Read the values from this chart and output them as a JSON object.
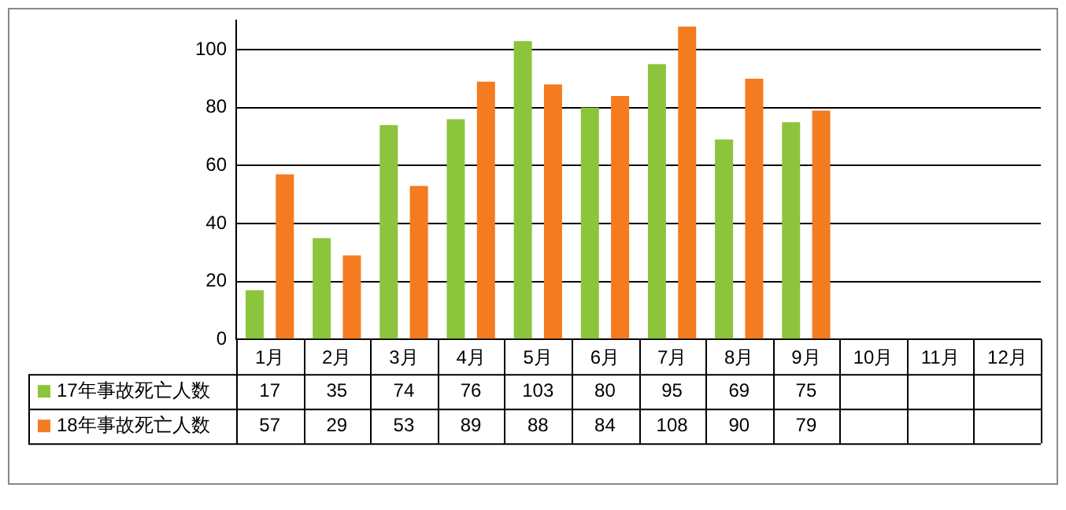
{
  "chart_data": {
    "type": "bar",
    "categories": [
      "1月",
      "2月",
      "3月",
      "4月",
      "5月",
      "6月",
      "7月",
      "8月",
      "9月",
      "10月",
      "11月",
      "12月"
    ],
    "series": [
      {
        "name": "17年事故死亡人数",
        "color": "#8cc43c",
        "values": [
          17,
          35,
          74,
          76,
          103,
          80,
          95,
          69,
          75,
          null,
          null,
          null
        ]
      },
      {
        "name": "18年事故死亡人数",
        "color": "#f47b20",
        "values": [
          57,
          29,
          53,
          89,
          88,
          84,
          108,
          90,
          79,
          null,
          null,
          null
        ]
      }
    ],
    "ylim": [
      0,
      110
    ],
    "yticks": [
      0,
      20,
      40,
      60,
      80,
      100
    ],
    "grid": "y",
    "legend": "bottom",
    "data_labels": true
  }
}
